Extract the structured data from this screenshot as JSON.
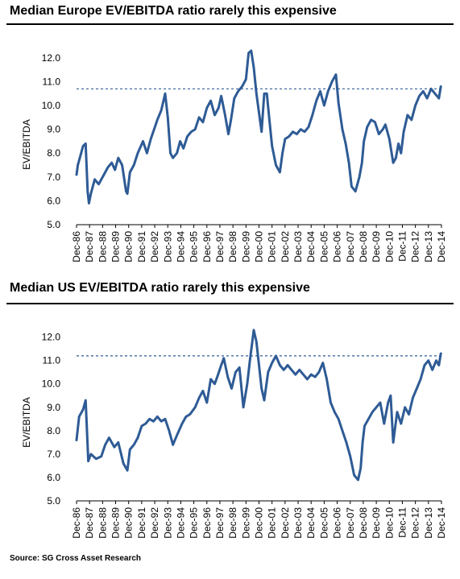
{
  "source": "Source: SG Cross Asset Research",
  "chart_data": [
    {
      "type": "line",
      "title": "Median Europe EV/EBITDA ratio rarely this expensive",
      "xlabel": "",
      "ylabel": "EV/EBITDA",
      "ylim": [
        5.0,
        12.5
      ],
      "yticks": [
        "5.0",
        "6.0",
        "7.0",
        "8.0",
        "9.0",
        "10.0",
        "11.0",
        "12.0"
      ],
      "xticks": [
        "Dec-86",
        "Dec-87",
        "Dec-88",
        "Dec-89",
        "Dec-90",
        "Dec-91",
        "Dec-92",
        "Dec-93",
        "Dec-94",
        "Dec-95",
        "Dec-96",
        "Dec-97",
        "Dec-98",
        "Dec-99",
        "Dec-00",
        "Dec-01",
        "Dec-02",
        "Dec-03",
        "Dec-04",
        "Dec-05",
        "Dec-06",
        "Dec-07",
        "Dec-08",
        "Dec-09",
        "Dec-10",
        "Dec-11",
        "Dec-12",
        "Dec-13",
        "Dec-14"
      ],
      "reference_line": 10.7,
      "line_color": "#2e5b95",
      "ref_color": "#2e5b95",
      "grid": false,
      "series": [
        {
          "x": [
            1986.9,
            1987.0,
            1987.2,
            1987.4,
            1987.6,
            1987.75,
            1987.85,
            1988.0,
            1988.3,
            1988.6,
            1989.0,
            1989.3,
            1989.6,
            1989.85,
            1990.1,
            1990.4,
            1990.7,
            1990.8,
            1991.0,
            1991.3,
            1991.6,
            1992.0,
            1992.3,
            1992.6,
            1992.85,
            1993.1,
            1993.4,
            1993.7,
            1993.9,
            1994.1,
            1994.3,
            1994.6,
            1994.85,
            1995.1,
            1995.4,
            1995.7,
            1996.0,
            1996.3,
            1996.6,
            1996.9,
            1997.2,
            1997.5,
            1997.8,
            1998.0,
            1998.3,
            1998.55,
            1998.75,
            1999.0,
            1999.3,
            1999.6,
            1999.9,
            2000.1,
            2000.3,
            2000.5,
            2000.7,
            2000.9,
            2001.1,
            2001.3,
            2001.5,
            2001.7,
            2001.9,
            2002.2,
            2002.5,
            2002.7,
            2002.9,
            2003.2,
            2003.5,
            2003.8,
            2004.1,
            2004.4,
            2004.7,
            2005.0,
            2005.3,
            2005.6,
            2005.9,
            2006.2,
            2006.5,
            2006.8,
            2007.0,
            2007.3,
            2007.55,
            2007.8,
            2008.0,
            2008.3,
            2008.6,
            2008.8,
            2008.95,
            2009.2,
            2009.5,
            2009.8,
            2010.1,
            2010.4,
            2010.6,
            2010.9,
            2011.2,
            2011.4,
            2011.6,
            2011.8,
            2012.0,
            2012.3,
            2012.6,
            2012.9,
            2013.2,
            2013.5,
            2013.8,
            2014.1,
            2014.4,
            2014.7,
            2014.85
          ],
          "y": [
            7.1,
            7.5,
            7.9,
            8.3,
            8.4,
            6.4,
            5.9,
            6.3,
            6.9,
            6.7,
            7.1,
            7.4,
            7.6,
            7.3,
            7.8,
            7.5,
            6.4,
            6.3,
            7.2,
            7.5,
            8.0,
            8.5,
            8.0,
            8.6,
            9.0,
            9.4,
            9.8,
            10.5,
            9.5,
            8.0,
            7.8,
            8.0,
            8.5,
            8.2,
            8.7,
            8.9,
            9.0,
            9.5,
            9.3,
            9.9,
            10.2,
            9.6,
            9.9,
            10.4,
            9.6,
            8.8,
            9.4,
            10.3,
            10.6,
            10.8,
            11.1,
            12.2,
            12.3,
            11.6,
            10.5,
            9.7,
            8.9,
            10.5,
            10.5,
            9.4,
            8.3,
            7.5,
            7.2,
            8.0,
            8.6,
            8.7,
            8.9,
            8.8,
            9.0,
            8.9,
            9.1,
            9.6,
            10.2,
            10.6,
            10.0,
            10.6,
            11.0,
            11.3,
            10.1,
            9.0,
            8.4,
            7.6,
            6.6,
            6.4,
            7.0,
            7.6,
            8.5,
            9.1,
            9.4,
            9.3,
            8.8,
            9.0,
            9.2,
            8.6,
            7.6,
            7.8,
            8.4,
            8.0,
            8.9,
            9.6,
            9.4,
            10.0,
            10.4,
            10.6,
            10.3,
            10.7,
            10.5,
            10.3,
            10.8
          ]
        }
      ]
    },
    {
      "type": "line",
      "title": "Median US EV/EBITDA ratio rarely this expensive",
      "xlabel": "",
      "ylabel": "EV/EBITDA",
      "ylim": [
        5.0,
        12.5
      ],
      "yticks": [
        "5.0",
        "6.0",
        "7.0",
        "8.0",
        "9.0",
        "10.0",
        "11.0",
        "12.0"
      ],
      "xticks": [
        "Dec-86",
        "Dec-87",
        "Dec-88",
        "Dec-89",
        "Dec-90",
        "Dec-91",
        "Dec-92",
        "Dec-93",
        "Dec-94",
        "Dec-95",
        "Dec-96",
        "Dec-97",
        "Dec-98",
        "Dec-99",
        "Dec-00",
        "Dec-01",
        "Dec-02",
        "Dec-03",
        "Dec-04",
        "Dec-05",
        "Dec-06",
        "Dec-07",
        "Dec-08",
        "Dec-09",
        "Dec-10",
        "Dec-11",
        "Dec-12",
        "Dec-13",
        "Dec-14"
      ],
      "reference_line": 11.2,
      "line_color": "#2e5b95",
      "ref_color": "#2e5b95",
      "grid": false,
      "series": [
        {
          "x": [
            1986.9,
            1987.1,
            1987.4,
            1987.6,
            1987.8,
            1988.0,
            1988.4,
            1988.8,
            1989.1,
            1989.4,
            1989.8,
            1990.1,
            1990.5,
            1990.8,
            1991.0,
            1991.3,
            1991.6,
            1991.9,
            1992.2,
            1992.5,
            1992.8,
            1993.1,
            1993.4,
            1993.7,
            1994.0,
            1994.3,
            1994.6,
            1995.0,
            1995.3,
            1995.6,
            1996.0,
            1996.3,
            1996.6,
            1996.9,
            1997.2,
            1997.5,
            1997.7,
            1998.0,
            1998.2,
            1998.5,
            1998.8,
            1999.1,
            1999.4,
            1999.7,
            2000.0,
            2000.2,
            2000.5,
            2000.7,
            2000.9,
            2001.1,
            2001.3,
            2001.6,
            2001.9,
            2002.2,
            2002.5,
            2002.8,
            2003.1,
            2003.4,
            2003.7,
            2004.0,
            2004.3,
            2004.6,
            2004.9,
            2005.2,
            2005.5,
            2005.8,
            2006.1,
            2006.4,
            2006.7,
            2007.0,
            2007.3,
            2007.6,
            2007.9,
            2008.2,
            2008.5,
            2008.7,
            2008.85,
            2009.0,
            2009.3,
            2009.6,
            2009.9,
            2010.2,
            2010.5,
            2010.8,
            2011.0,
            2011.2,
            2011.5,
            2011.8,
            2012.1,
            2012.4,
            2012.7,
            2013.0,
            2013.3,
            2013.6,
            2013.9,
            2014.2,
            2014.5,
            2014.7,
            2014.85
          ],
          "y": [
            7.6,
            8.6,
            8.9,
            9.3,
            6.7,
            7.0,
            6.8,
            6.9,
            7.4,
            7.7,
            7.3,
            7.5,
            6.6,
            6.3,
            7.2,
            7.4,
            7.7,
            8.2,
            8.3,
            8.5,
            8.4,
            8.6,
            8.4,
            8.5,
            8.0,
            7.4,
            7.8,
            8.3,
            8.6,
            8.7,
            9.0,
            9.4,
            9.7,
            9.2,
            10.2,
            10.0,
            10.3,
            10.8,
            11.1,
            10.3,
            9.8,
            10.5,
            10.7,
            9.0,
            10.0,
            11.0,
            12.3,
            11.8,
            10.8,
            9.8,
            9.3,
            10.5,
            10.9,
            11.2,
            10.8,
            10.6,
            10.8,
            10.6,
            10.4,
            10.6,
            10.4,
            10.2,
            10.4,
            10.3,
            10.5,
            10.9,
            10.2,
            9.2,
            8.8,
            8.5,
            8.0,
            7.5,
            6.9,
            6.1,
            5.9,
            6.4,
            7.5,
            8.2,
            8.5,
            8.8,
            9.0,
            9.2,
            8.3,
            9.2,
            9.5,
            7.5,
            8.8,
            8.3,
            9.0,
            8.7,
            9.4,
            9.8,
            10.2,
            10.8,
            11.0,
            10.6,
            11.0,
            10.8,
            11.3
          ]
        }
      ]
    }
  ]
}
